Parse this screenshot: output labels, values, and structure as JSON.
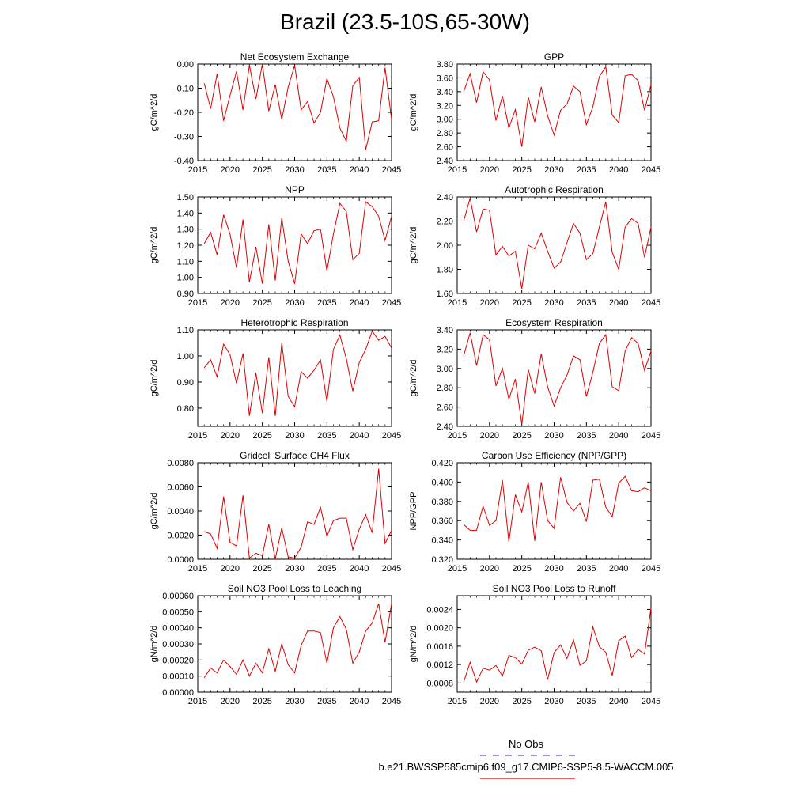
{
  "title": "Brazil (23.5-10S,65-30W)",
  "legend": {
    "obs_label": "No Obs",
    "obs_color": "#5555cc",
    "model_label": "b.e21.BWSSP585cmip6.f09_g17.CMIP6-SSP5-8.5-WACCM.005",
    "model_color": "#dd0000"
  },
  "chart_data": [
    {
      "type": "line",
      "title": "Net Ecosystem Exchange",
      "ylabel": "gC/m^2/d",
      "xlim": [
        2015,
        2045
      ],
      "ylim": [
        -0.4,
        0.0
      ],
      "xticks": [
        2015,
        2020,
        2025,
        2030,
        2035,
        2040,
        2045
      ],
      "yticks": [
        "0.00",
        "-0.10",
        "-0.20",
        "-0.30",
        "-0.40"
      ],
      "x": [
        2016,
        2017,
        2018,
        2019,
        2020,
        2021,
        2022,
        2023,
        2024,
        2025,
        2026,
        2027,
        2028,
        2029,
        2030,
        2031,
        2032,
        2033,
        2034,
        2035,
        2036,
        2037,
        2038,
        2039,
        2040,
        2041,
        2042,
        2043,
        2044,
        2045
      ],
      "values": [
        -0.08,
        -0.185,
        -0.04,
        -0.235,
        -0.13,
        -0.03,
        -0.19,
        -0.005,
        -0.145,
        0.0,
        -0.195,
        -0.085,
        -0.23,
        -0.095,
        -0.005,
        -0.19,
        -0.155,
        -0.245,
        -0.2,
        -0.06,
        -0.135,
        -0.265,
        -0.32,
        -0.09,
        -0.055,
        -0.355,
        -0.24,
        -0.235,
        -0.015,
        -0.23
      ]
    },
    {
      "type": "line",
      "title": "GPP",
      "ylabel": "gC/m^2/d",
      "xlim": [
        2015,
        2045
      ],
      "ylim": [
        2.4,
        3.8
      ],
      "xticks": [
        2015,
        2020,
        2025,
        2030,
        2035,
        2040,
        2045
      ],
      "yticks": [
        "3.80",
        "3.60",
        "3.40",
        "3.20",
        "3.00",
        "2.80",
        "2.60",
        "2.40"
      ],
      "x": [
        2016,
        2017,
        2018,
        2019,
        2020,
        2021,
        2022,
        2023,
        2024,
        2025,
        2026,
        2027,
        2028,
        2029,
        2030,
        2031,
        2032,
        2033,
        2034,
        2035,
        2036,
        2037,
        2038,
        2039,
        2040,
        2041,
        2042,
        2043,
        2044,
        2045
      ],
      "values": [
        3.4,
        3.66,
        3.24,
        3.69,
        3.57,
        2.98,
        3.34,
        2.87,
        3.14,
        2.6,
        3.32,
        2.96,
        3.47,
        3.05,
        2.77,
        3.13,
        3.22,
        3.48,
        3.4,
        2.92,
        3.18,
        3.62,
        3.76,
        3.06,
        2.95,
        3.63,
        3.65,
        3.56,
        3.13,
        3.5
      ]
    },
    {
      "type": "line",
      "title": "NPP",
      "ylabel": "gC/m^2/d",
      "xlim": [
        2015,
        2045
      ],
      "ylim": [
        0.9,
        1.5
      ],
      "xticks": [
        2015,
        2020,
        2025,
        2030,
        2035,
        2040,
        2045
      ],
      "yticks": [
        "1.50",
        "1.40",
        "1.30",
        "1.20",
        "1.10",
        "1.00",
        "0.90"
      ],
      "x": [
        2016,
        2017,
        2018,
        2019,
        2020,
        2021,
        2022,
        2023,
        2024,
        2025,
        2026,
        2027,
        2028,
        2029,
        2030,
        2031,
        2032,
        2033,
        2034,
        2035,
        2036,
        2037,
        2038,
        2039,
        2040,
        2041,
        2042,
        2043,
        2044,
        2045
      ],
      "values": [
        1.21,
        1.28,
        1.14,
        1.39,
        1.27,
        1.06,
        1.36,
        0.97,
        1.19,
        0.96,
        1.33,
        0.98,
        1.37,
        1.1,
        0.96,
        1.27,
        1.21,
        1.29,
        1.3,
        1.04,
        1.27,
        1.46,
        1.41,
        1.11,
        1.15,
        1.47,
        1.44,
        1.38,
        1.23,
        1.38
      ]
    },
    {
      "type": "line",
      "title": "Autotrophic Respiration",
      "ylabel": "gC/m^2/d",
      "xlim": [
        2015,
        2045
      ],
      "ylim": [
        1.6,
        2.4
      ],
      "xticks": [
        2015,
        2020,
        2025,
        2030,
        2035,
        2040,
        2045
      ],
      "yticks": [
        "2.40",
        "2.20",
        "2.00",
        "1.80",
        "1.60"
      ],
      "x": [
        2016,
        2017,
        2018,
        2019,
        2020,
        2021,
        2022,
        2023,
        2024,
        2025,
        2026,
        2027,
        2028,
        2029,
        2030,
        2031,
        2032,
        2033,
        2034,
        2035,
        2036,
        2037,
        2038,
        2039,
        2040,
        2041,
        2042,
        2043,
        2044,
        2045
      ],
      "values": [
        2.2,
        2.39,
        2.11,
        2.3,
        2.29,
        1.92,
        1.99,
        1.91,
        1.95,
        1.64,
        2.0,
        1.97,
        2.1,
        1.95,
        1.81,
        1.86,
        2.02,
        2.18,
        2.1,
        1.88,
        1.93,
        2.15,
        2.36,
        1.94,
        1.8,
        2.15,
        2.22,
        2.18,
        1.9,
        2.15
      ]
    },
    {
      "type": "line",
      "title": "Heterotrophic Respiration",
      "ylabel": "gC/m^2/d",
      "xlim": [
        2015,
        2045
      ],
      "ylim": [
        0.73,
        1.1
      ],
      "xticks": [
        2015,
        2020,
        2025,
        2030,
        2035,
        2040,
        2045
      ],
      "yticks": [
        "1.10",
        "1.00",
        "0.90",
        "0.80"
      ],
      "x": [
        2016,
        2017,
        2018,
        2019,
        2020,
        2021,
        2022,
        2023,
        2024,
        2025,
        2026,
        2027,
        2028,
        2029,
        2030,
        2031,
        2032,
        2033,
        2034,
        2035,
        2036,
        2037,
        2038,
        2039,
        2040,
        2041,
        2042,
        2043,
        2044,
        2045
      ],
      "values": [
        0.955,
        0.985,
        0.92,
        1.045,
        1.005,
        0.895,
        1.01,
        0.77,
        0.935,
        0.78,
        0.995,
        0.77,
        1.05,
        0.845,
        0.805,
        0.94,
        0.915,
        0.945,
        0.985,
        0.825,
        1.025,
        1.08,
        0.99,
        0.865,
        0.975,
        1.025,
        1.095,
        1.06,
        1.075,
        1.03
      ]
    },
    {
      "type": "line",
      "title": "Ecosystem Respiration",
      "ylabel": "gC/m^2/d",
      "xlim": [
        2015,
        2045
      ],
      "ylim": [
        2.4,
        3.4
      ],
      "xticks": [
        2015,
        2020,
        2025,
        2030,
        2035,
        2040,
        2045
      ],
      "yticks": [
        "3.40",
        "3.20",
        "3.00",
        "2.80",
        "2.60",
        "2.40"
      ],
      "x": [
        2016,
        2017,
        2018,
        2019,
        2020,
        2021,
        2022,
        2023,
        2024,
        2025,
        2026,
        2027,
        2028,
        2029,
        2030,
        2031,
        2032,
        2033,
        2034,
        2035,
        2036,
        2037,
        2038,
        2039,
        2040,
        2041,
        2042,
        2043,
        2044,
        2045
      ],
      "values": [
        3.13,
        3.37,
        3.03,
        3.35,
        3.3,
        2.82,
        3.0,
        2.68,
        2.89,
        2.42,
        2.99,
        2.74,
        3.15,
        2.81,
        2.61,
        2.8,
        2.93,
        3.13,
        3.09,
        2.71,
        2.96,
        3.26,
        3.35,
        2.81,
        2.77,
        3.18,
        3.32,
        3.26,
        2.98,
        3.18
      ]
    },
    {
      "type": "line",
      "title": "Gridcell Surface CH4 Flux",
      "ylabel": "gC/m^2/d",
      "xlim": [
        2015,
        2045
      ],
      "ylim": [
        0.0,
        0.008
      ],
      "xticks": [
        2015,
        2020,
        2025,
        2030,
        2035,
        2040,
        2045
      ],
      "yticks": [
        "0.0080",
        "0.0060",
        "0.0040",
        "0.0020",
        "0.0000"
      ],
      "x": [
        2016,
        2017,
        2018,
        2019,
        2020,
        2021,
        2022,
        2023,
        2024,
        2025,
        2026,
        2027,
        2028,
        2029,
        2030,
        2031,
        2032,
        2033,
        2034,
        2035,
        2036,
        2037,
        2038,
        2039,
        2040,
        2041,
        2042,
        2043,
        2044,
        2045
      ],
      "values": [
        0.0023,
        0.0021,
        0.0009,
        0.0052,
        0.0014,
        0.0011,
        0.0053,
        0.0001,
        0.0005,
        0.0003,
        0.0029,
        0.0,
        0.0026,
        0.0002,
        0.0001,
        0.001,
        0.0031,
        0.0029,
        0.0043,
        0.0019,
        0.0032,
        0.0034,
        0.0034,
        0.0008,
        0.0025,
        0.0037,
        0.0022,
        0.0075,
        0.0013,
        0.0024
      ]
    },
    {
      "type": "line",
      "title": "Carbon Use Efficiency (NPP/GPP)",
      "ylabel": "NPP/GPP",
      "xlim": [
        2015,
        2045
      ],
      "ylim": [
        0.32,
        0.42
      ],
      "xticks": [
        2015,
        2020,
        2025,
        2030,
        2035,
        2040,
        2045
      ],
      "yticks": [
        "0.420",
        "0.400",
        "0.380",
        "0.360",
        "0.340",
        "0.320"
      ],
      "x": [
        2016,
        2017,
        2018,
        2019,
        2020,
        2021,
        2022,
        2023,
        2024,
        2025,
        2026,
        2027,
        2028,
        2029,
        2030,
        2031,
        2032,
        2033,
        2034,
        2035,
        2036,
        2037,
        2038,
        2039,
        2040,
        2041,
        2042,
        2043,
        2044,
        2045
      ],
      "values": [
        0.356,
        0.35,
        0.35,
        0.375,
        0.355,
        0.36,
        0.402,
        0.338,
        0.387,
        0.369,
        0.4,
        0.339,
        0.4,
        0.36,
        0.352,
        0.405,
        0.379,
        0.37,
        0.378,
        0.359,
        0.402,
        0.403,
        0.374,
        0.364,
        0.399,
        0.406,
        0.391,
        0.39,
        0.394,
        0.391
      ]
    },
    {
      "type": "line",
      "title": "Soil NO3 Pool Loss to Leaching",
      "ylabel": "gN/m^2/d",
      "xlim": [
        2015,
        2045
      ],
      "ylim": [
        0.0,
        0.0006
      ],
      "xticks": [
        2015,
        2020,
        2025,
        2030,
        2035,
        2040,
        2045
      ],
      "yticks": [
        "0.00060",
        "0.00050",
        "0.00040",
        "0.00030",
        "0.00020",
        "0.00010",
        "0.00000"
      ],
      "x": [
        2016,
        2017,
        2018,
        2019,
        2020,
        2021,
        2022,
        2023,
        2024,
        2025,
        2026,
        2027,
        2028,
        2029,
        2030,
        2031,
        2032,
        2033,
        2034,
        2035,
        2036,
        2037,
        2038,
        2039,
        2040,
        2041,
        2042,
        2043,
        2044,
        2045
      ],
      "values": [
        9e-05,
        0.00015,
        0.00012,
        0.0002,
        0.00016,
        0.00011,
        0.0002,
        0.0001,
        0.00018,
        0.00012,
        0.00027,
        0.00013,
        0.0003,
        0.00017,
        0.00012,
        0.00029,
        0.00038,
        0.00038,
        0.00037,
        0.00018,
        0.0004,
        0.00047,
        0.00039,
        0.00018,
        0.00025,
        0.00038,
        0.00043,
        0.00055,
        0.00031,
        0.00055
      ]
    },
    {
      "type": "line",
      "title": "Soil NO3 Pool Loss to Runoff",
      "ylabel": "gN/m^2/d",
      "xlim": [
        2015,
        2045
      ],
      "ylim": [
        0.0006,
        0.0027
      ],
      "xticks": [
        2015,
        2020,
        2025,
        2030,
        2035,
        2040,
        2045
      ],
      "yticks": [
        "0.0024",
        "0.0020",
        "0.0016",
        "0.0012",
        "0.0008"
      ],
      "x": [
        2016,
        2017,
        2018,
        2019,
        2020,
        2021,
        2022,
        2023,
        2024,
        2025,
        2026,
        2027,
        2028,
        2029,
        2030,
        2031,
        2032,
        2033,
        2034,
        2035,
        2036,
        2037,
        2038,
        2039,
        2040,
        2041,
        2042,
        2043,
        2044,
        2045
      ],
      "values": [
        0.00082,
        0.00125,
        0.00082,
        0.00112,
        0.00108,
        0.00118,
        0.00095,
        0.0014,
        0.00135,
        0.00121,
        0.00151,
        0.00158,
        0.0015,
        0.00087,
        0.00146,
        0.00163,
        0.00133,
        0.00174,
        0.00118,
        0.00128,
        0.00202,
        0.00159,
        0.00147,
        0.00096,
        0.00172,
        0.00182,
        0.00135,
        0.00153,
        0.00143,
        0.00243
      ]
    }
  ]
}
